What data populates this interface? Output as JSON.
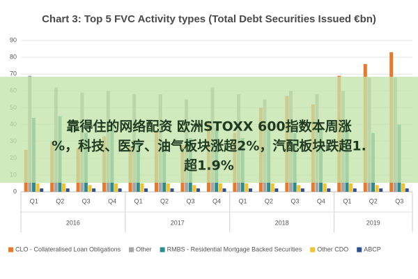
{
  "chart_data": {
    "type": "bar",
    "title": "Chart 3: Top 5 FVC Activity types (Total Debt Securities Issued €bn)",
    "groups": [
      {
        "label": "2016",
        "categories": [
          "Q1",
          "Q2",
          "Q3",
          "Q4"
        ]
      },
      {
        "label": "2017",
        "categories": [
          "Q1",
          "Q2",
          "Q3",
          "Q4"
        ]
      },
      {
        "label": "2018",
        "categories": [
          "Q1",
          "Q2",
          "Q3",
          "Q4"
        ]
      },
      {
        "label": "2019",
        "categories": [
          "Q1",
          "Q2",
          "Q3"
        ]
      }
    ],
    "series": [
      {
        "name": "CLO - Collateralised Loan Obligations",
        "color": "#e8782a",
        "values": [
          25,
          30,
          26,
          33,
          27,
          36,
          28,
          41,
          35,
          50,
          57,
          52,
          69,
          76,
          83
        ]
      },
      {
        "name": "Other",
        "color": "#a5a5a5",
        "values": [
          69,
          62,
          59,
          60,
          58,
          58,
          55,
          62,
          58,
          55,
          60,
          58,
          60,
          68,
          68
        ]
      },
      {
        "name": "RMBS - Residential Mortgage Backed Securities",
        "color": "#2a8c8c",
        "values": [
          44,
          45,
          35,
          40,
          30,
          30,
          32,
          38,
          32,
          37,
          35,
          38,
          40,
          35,
          40
        ]
      },
      {
        "name": "Other CDO",
        "color": "#f2c230",
        "values": [
          5,
          5,
          4,
          5,
          5,
          5,
          4,
          5,
          5,
          5,
          4,
          5,
          5,
          4,
          5
        ]
      },
      {
        "name": "ABCP",
        "color": "#2e4f8f",
        "values": [
          2,
          2,
          2,
          2,
          2,
          2,
          2,
          2,
          2,
          2,
          2,
          2,
          2,
          2,
          2
        ]
      }
    ],
    "ylim": [
      0,
      90
    ],
    "yticks": [
      0,
      10,
      20,
      30,
      40,
      50,
      60,
      70,
      80,
      90
    ],
    "grid": true
  },
  "overlay": {
    "lines": [
      "靠得住的网络配资 欧洲STOXX 600指数本周涨",
      "%，科技、医疗、油气板块涨超2%，汽配板块跌超1.",
      "超1.9%"
    ]
  }
}
